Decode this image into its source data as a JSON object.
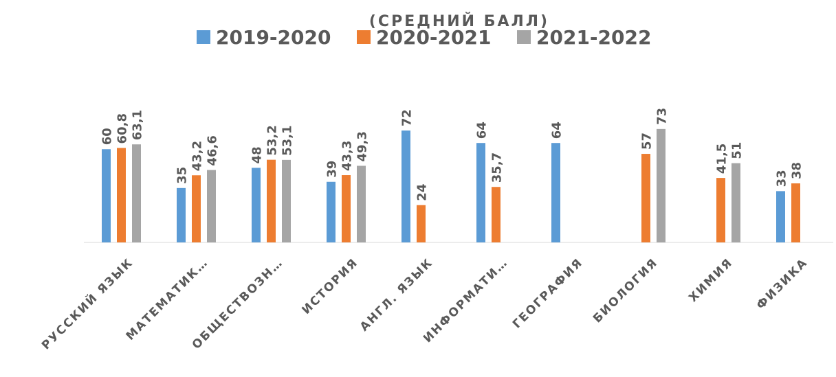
{
  "chart_data": {
    "type": "bar",
    "subtitle": "(СРЕДНИЙ БАЛЛ)",
    "categories": [
      "РУССКИЙ ЯЗЫК",
      "МАТЕМАТИК…",
      "ОБЩЕСТВОЗН…",
      "ИСТОРИЯ",
      "АНГЛ. ЯЗЫК",
      "ИНФОРМАТИ…",
      "ГЕОГРАФИЯ",
      "БИОЛОГИЯ",
      "ХИМИЯ",
      "ФИЗИКА"
    ],
    "series": [
      {
        "name": "2019-2020",
        "color": "#5b9bd5",
        "values": [
          60,
          35,
          48,
          39,
          72,
          64,
          64,
          null,
          null,
          33
        ],
        "value_labels": [
          "60",
          "35",
          "48",
          "39",
          "72",
          "64",
          "64",
          null,
          null,
          "33"
        ]
      },
      {
        "name": "2020-2021",
        "color": "#ed7d31",
        "values": [
          60.8,
          43.2,
          53.2,
          43.3,
          24,
          35.7,
          null,
          57,
          41.5,
          38
        ],
        "value_labels": [
          "60,8",
          "43,2",
          "53,2",
          "43,3",
          "24",
          "35,7",
          null,
          "57",
          "41,5",
          "38"
        ]
      },
      {
        "name": "2021-2022",
        "color": "#a5a5a5",
        "values": [
          63.1,
          46.6,
          53.1,
          49.3,
          null,
          null,
          null,
          73,
          51,
          null
        ],
        "value_labels": [
          "63,1",
          "46,6",
          "53,1",
          "49,3",
          null,
          null,
          null,
          "73",
          "51",
          null
        ]
      }
    ],
    "ylim": [
      0,
      80
    ],
    "legend": "top"
  }
}
